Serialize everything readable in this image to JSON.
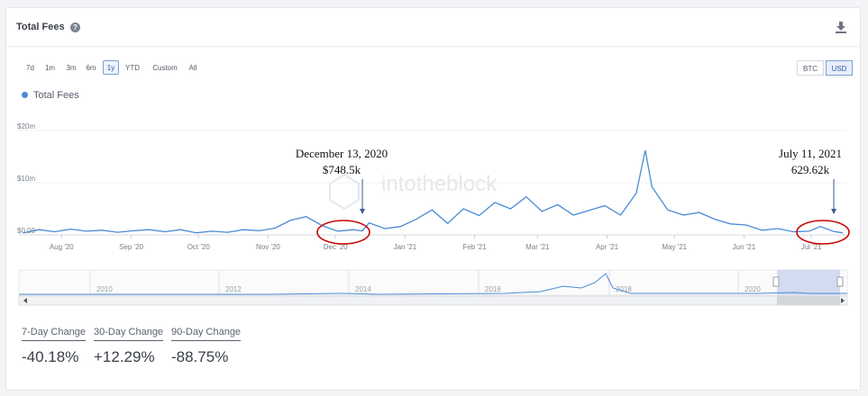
{
  "header": {
    "title": "Total Fees",
    "help_icon": "question-circle-icon",
    "download_icon": "download-icon"
  },
  "time_ranges": [
    "7d",
    "1m",
    "3m",
    "6m",
    "1y",
    "YTD",
    "Custom",
    "All"
  ],
  "active_range": "1y",
  "currencies": [
    "BTC",
    "USD"
  ],
  "active_currency": "USD",
  "legend": {
    "label": "Total Fees"
  },
  "watermark": "intotheblock",
  "annotations": [
    {
      "line1": "December 13, 2020",
      "line2": "$748.5k"
    },
    {
      "line1": "July 11, 2021",
      "line2": "629.62k"
    }
  ],
  "stats": [
    {
      "label": "7-Day Change",
      "value": "-40.18%"
    },
    {
      "label": "30-Day Change",
      "value": "+12.29%"
    },
    {
      "label": "90-Day Change",
      "value": "-88.75%"
    }
  ],
  "colors": {
    "line": "#4a8bd4",
    "annotation": "#cc0000",
    "navigator_fill": "#c8d3ec"
  },
  "chart_data": {
    "type": "line",
    "title": "Total Fees",
    "series": [
      {
        "name": "Total Fees",
        "x": [
          "2020-07-15",
          "2020-07-22",
          "2020-07-29",
          "2020-08-05",
          "2020-08-12",
          "2020-08-19",
          "2020-08-26",
          "2020-09-02",
          "2020-09-09",
          "2020-09-16",
          "2020-09-23",
          "2020-09-30",
          "2020-10-07",
          "2020-10-14",
          "2020-10-21",
          "2020-10-28",
          "2020-11-04",
          "2020-11-11",
          "2020-11-18",
          "2020-11-25",
          "2020-12-02",
          "2020-12-09",
          "2020-12-13",
          "2020-12-16",
          "2020-12-23",
          "2020-12-30",
          "2021-01-06",
          "2021-01-13",
          "2021-01-20",
          "2021-01-27",
          "2021-02-03",
          "2021-02-10",
          "2021-02-17",
          "2021-02-24",
          "2021-03-03",
          "2021-03-10",
          "2021-03-17",
          "2021-03-24",
          "2021-03-31",
          "2021-04-07",
          "2021-04-14",
          "2021-04-18",
          "2021-04-21",
          "2021-04-28",
          "2021-05-05",
          "2021-05-12",
          "2021-05-19",
          "2021-05-26",
          "2021-06-02",
          "2021-06-09",
          "2021-06-16",
          "2021-06-23",
          "2021-06-30",
          "2021-07-05",
          "2021-07-11",
          "2021-07-15"
        ],
        "values": [
          0.4,
          1.0,
          0.6,
          1.1,
          0.7,
          0.9,
          0.5,
          0.8,
          1.0,
          0.6,
          1.0,
          0.4,
          0.7,
          0.5,
          1.0,
          0.8,
          1.3,
          2.8,
          3.5,
          1.8,
          0.7,
          1.0,
          0.75,
          2.3,
          1.2,
          1.6,
          3.0,
          4.8,
          2.2,
          5.0,
          3.7,
          6.2,
          5.0,
          7.3,
          4.5,
          5.8,
          3.8,
          4.7,
          5.6,
          3.8,
          8.0,
          16.2,
          9.2,
          4.8,
          3.8,
          4.3,
          3.0,
          2.1,
          1.9,
          0.9,
          1.2,
          0.6,
          0.7,
          1.6,
          0.63,
          0.4
        ]
      }
    ],
    "yticks": [
      "$0.00",
      "$10m",
      "$20m"
    ],
    "ylim": [
      0,
      20
    ],
    "xtick_labels": [
      "Aug '20",
      "Sep '20",
      "Oct '20",
      "Nov '20",
      "Dec '20",
      "Jan '21",
      "Feb '21",
      "Mar '21",
      "Apr '21",
      "May '21",
      "Jun '21",
      "Jul '21"
    ],
    "navigator_labels": [
      "2010",
      "2012",
      "2014",
      "2016",
      "2018",
      "2020"
    ],
    "grid": true
  }
}
